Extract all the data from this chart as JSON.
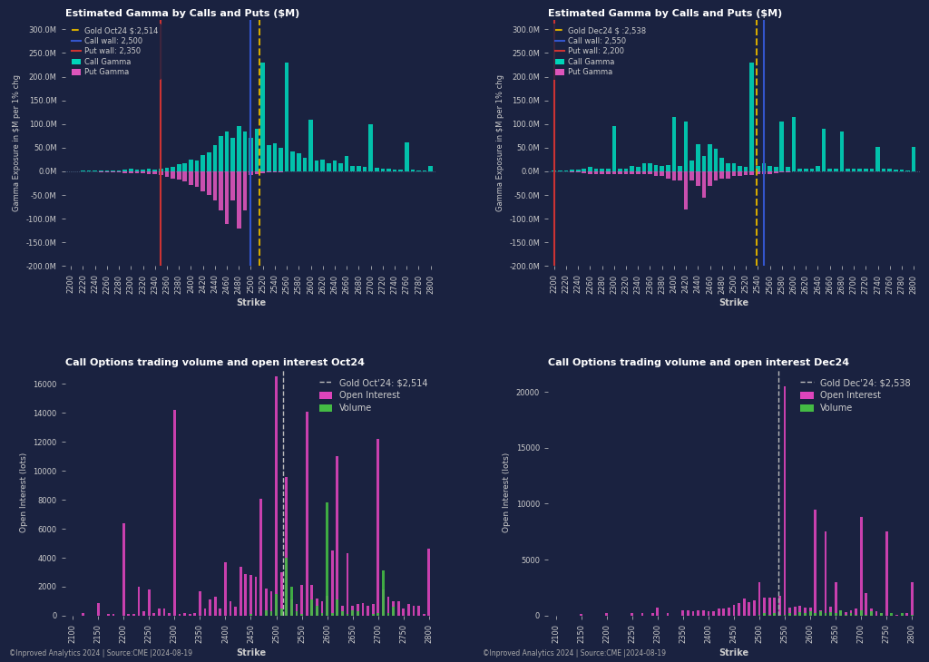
{
  "bg_color": "#1a2240",
  "text_color": "#cccccc",
  "title_color": "#ffffff",
  "top_left": {
    "title": "Estimated Gamma by Calls and Puts ($M)",
    "gold_price": 2514,
    "gold_label": "Gold Oct24 $:2,514",
    "call_wall": 2500,
    "call_wall_label": "Call wall: 2,500",
    "put_wall": 2350,
    "put_wall_label": "Put wall: 2,350",
    "ylabel": "Gamma Exposure in $M per 1% chg",
    "xlabel": "Strike",
    "ylim_min": -200,
    "ylim_max": 320,
    "strikes": [
      2200,
      2210,
      2220,
      2230,
      2240,
      2250,
      2260,
      2270,
      2280,
      2290,
      2300,
      2310,
      2320,
      2330,
      2340,
      2350,
      2360,
      2370,
      2380,
      2390,
      2400,
      2410,
      2420,
      2430,
      2440,
      2450,
      2460,
      2470,
      2480,
      2490,
      2500,
      2510,
      2520,
      2530,
      2540,
      2550,
      2560,
      2570,
      2580,
      2590,
      2600,
      2610,
      2620,
      2630,
      2640,
      2650,
      2660,
      2670,
      2680,
      2690,
      2700,
      2710,
      2720,
      2730,
      2740,
      2750,
      2760,
      2770,
      2780,
      2790,
      2800
    ],
    "call_gamma": [
      0,
      0,
      1,
      1,
      1,
      2,
      2,
      2,
      2,
      3,
      5,
      4,
      3,
      5,
      4,
      6,
      7,
      10,
      15,
      18,
      25,
      22,
      35,
      40,
      55,
      75,
      85,
      70,
      95,
      85,
      70,
      90,
      230,
      55,
      60,
      50,
      230,
      42,
      38,
      28,
      110,
      22,
      25,
      18,
      22,
      18,
      32,
      12,
      12,
      10,
      100,
      7,
      6,
      5,
      4,
      3,
      62,
      3,
      2,
      2,
      12
    ],
    "put_gamma": [
      0,
      0,
      -1,
      -1,
      -1,
      -2,
      -2,
      -2,
      -2,
      -3,
      -4,
      -4,
      -4,
      -5,
      -5,
      -8,
      -12,
      -15,
      -18,
      -22,
      -28,
      -32,
      -42,
      -50,
      -62,
      -82,
      -112,
      -62,
      -120,
      -82,
      -8,
      -5,
      -3,
      -2,
      -2,
      -2,
      -1,
      -1,
      -1,
      -1,
      -1,
      -1,
      -1,
      -1,
      -1,
      -1,
      -1,
      -1,
      -1,
      -1,
      -1,
      -1,
      -1,
      -1,
      -1,
      -1,
      -1,
      -1,
      -1,
      -1,
      -1
    ]
  },
  "top_right": {
    "title": "Estimated Gamma by Calls and Puts ($M)",
    "gold_price": 2538,
    "gold_label": "Gold Dec24 $ :2,538",
    "call_wall": 2550,
    "call_wall_label": "Call wall: 2,550",
    "put_wall": 2200,
    "put_wall_label": "Put wall: 2,200",
    "ylabel": "Gamma Exposure in $M per 1% chg",
    "xlabel": "Strike",
    "ylim_min": -200,
    "ylim_max": 320,
    "strikes": [
      2200,
      2210,
      2220,
      2230,
      2240,
      2250,
      2260,
      2270,
      2280,
      2290,
      2300,
      2310,
      2320,
      2330,
      2340,
      2350,
      2360,
      2370,
      2380,
      2390,
      2400,
      2410,
      2420,
      2430,
      2440,
      2450,
      2460,
      2470,
      2480,
      2490,
      2500,
      2510,
      2520,
      2530,
      2540,
      2550,
      2560,
      2570,
      2580,
      2590,
      2600,
      2610,
      2620,
      2630,
      2640,
      2650,
      2660,
      2670,
      2680,
      2690,
      2700,
      2710,
      2720,
      2730,
      2740,
      2750,
      2760,
      2770,
      2780,
      2790,
      2800
    ],
    "call_gamma": [
      1,
      1,
      2,
      3,
      4,
      6,
      10,
      6,
      6,
      6,
      95,
      6,
      6,
      12,
      10,
      18,
      18,
      14,
      12,
      14,
      115,
      12,
      105,
      22,
      58,
      32,
      58,
      48,
      28,
      18,
      18,
      12,
      10,
      230,
      12,
      18,
      12,
      10,
      105,
      10,
      115,
      6,
      6,
      6,
      12,
      90,
      6,
      6,
      85,
      6,
      6,
      6,
      6,
      6,
      52,
      6,
      6,
      3,
      3,
      2,
      52
    ],
    "put_gamma": [
      -1,
      -1,
      -1,
      -2,
      -2,
      -3,
      -5,
      -5,
      -5,
      -5,
      -5,
      -5,
      -5,
      -5,
      -5,
      -5,
      -5,
      -10,
      -10,
      -15,
      -20,
      -20,
      -80,
      -20,
      -30,
      -55,
      -30,
      -20,
      -15,
      -15,
      -10,
      -10,
      -8,
      -8,
      -5,
      -5,
      -5,
      -3,
      -2,
      -2,
      -1,
      -1,
      -1,
      -1,
      -1,
      -1,
      -1,
      -1,
      -1,
      -1,
      -1,
      -1,
      -1,
      -1,
      -1,
      -1,
      -1,
      -1,
      -1,
      -1,
      -1
    ]
  },
  "bot_left": {
    "title": "Call Options trading volume and open interest Oct24",
    "gold_price": 2514,
    "gold_label": "Gold Oct'24: $2,514",
    "ylabel": "Open Interest (lots)",
    "xlabel": "Strike",
    "ylim_max": 17000,
    "strikes": [
      2100,
      2110,
      2120,
      2130,
      2140,
      2150,
      2160,
      2170,
      2180,
      2190,
      2200,
      2210,
      2220,
      2230,
      2240,
      2250,
      2260,
      2270,
      2280,
      2290,
      2300,
      2310,
      2320,
      2330,
      2340,
      2350,
      2360,
      2370,
      2380,
      2390,
      2400,
      2410,
      2420,
      2430,
      2440,
      2450,
      2460,
      2470,
      2480,
      2490,
      2500,
      2510,
      2520,
      2530,
      2540,
      2550,
      2560,
      2570,
      2580,
      2590,
      2600,
      2610,
      2620,
      2630,
      2640,
      2650,
      2660,
      2670,
      2680,
      2690,
      2700,
      2710,
      2720,
      2730,
      2740,
      2750,
      2760,
      2770,
      2780,
      2790,
      2800
    ],
    "open_interest": [
      0,
      0,
      200,
      0,
      0,
      900,
      0,
      100,
      100,
      0,
      6400,
      100,
      100,
      2000,
      300,
      1800,
      200,
      500,
      500,
      200,
      14200,
      100,
      200,
      100,
      200,
      1700,
      500,
      1100,
      1300,
      500,
      3700,
      1000,
      600,
      3400,
      2900,
      2800,
      2700,
      8100,
      1900,
      1700,
      16500,
      3000,
      9600,
      1100,
      800,
      2100,
      14100,
      2100,
      1200,
      1000,
      1400,
      4500,
      11000,
      700,
      4300,
      700,
      800,
      900,
      700,
      800,
      12200,
      1800,
      1300,
      1000,
      1000,
      500,
      800,
      700,
      700,
      100,
      4600
    ],
    "volume": [
      0,
      0,
      0,
      0,
      0,
      0,
      0,
      0,
      0,
      0,
      0,
      0,
      0,
      0,
      0,
      0,
      0,
      0,
      0,
      0,
      0,
      0,
      0,
      0,
      0,
      0,
      0,
      0,
      0,
      0,
      0,
      0,
      0,
      0,
      0,
      100,
      0,
      0,
      400,
      300,
      1500,
      500,
      4000,
      2000,
      300,
      100,
      0,
      1100,
      700,
      200,
      7800,
      200,
      1100,
      300,
      100,
      400,
      300,
      0,
      0,
      100,
      200,
      3100,
      200,
      600,
      0,
      0,
      0,
      0,
      0,
      0,
      0
    ]
  },
  "bot_right": {
    "title": "Call Options trading volume and open interest Dec24",
    "gold_price": 2538,
    "gold_label": "Gold Dec'24: $2,538",
    "ylabel": "Open Interest (lots)",
    "xlabel": "Strike",
    "ylim_max": 22000,
    "strikes": [
      2100,
      2110,
      2120,
      2130,
      2140,
      2150,
      2160,
      2170,
      2180,
      2190,
      2200,
      2210,
      2220,
      2230,
      2240,
      2250,
      2260,
      2270,
      2280,
      2290,
      2300,
      2310,
      2320,
      2330,
      2340,
      2350,
      2360,
      2370,
      2380,
      2390,
      2400,
      2410,
      2420,
      2430,
      2440,
      2450,
      2460,
      2470,
      2480,
      2490,
      2500,
      2510,
      2520,
      2530,
      2540,
      2550,
      2560,
      2570,
      2580,
      2590,
      2600,
      2610,
      2620,
      2630,
      2640,
      2650,
      2660,
      2670,
      2680,
      2690,
      2700,
      2710,
      2720,
      2730,
      2740,
      2750,
      2760,
      2770,
      2780,
      2790,
      2800
    ],
    "open_interest": [
      0,
      0,
      0,
      0,
      0,
      150,
      0,
      0,
      0,
      0,
      200,
      0,
      0,
      0,
      0,
      200,
      0,
      200,
      0,
      200,
      700,
      0,
      200,
      0,
      0,
      500,
      500,
      400,
      500,
      500,
      400,
      400,
      600,
      600,
      700,
      1000,
      1100,
      1500,
      1200,
      1400,
      3000,
      1600,
      1600,
      1600,
      1800,
      20500,
      700,
      800,
      900,
      700,
      700,
      9500,
      500,
      7500,
      800,
      3000,
      500,
      300,
      500,
      600,
      8800,
      2000,
      600,
      400,
      200,
      7500,
      100,
      100,
      100,
      200,
      3000
    ],
    "volume": [
      0,
      0,
      0,
      0,
      0,
      0,
      0,
      0,
      0,
      0,
      0,
      0,
      0,
      0,
      0,
      0,
      0,
      0,
      0,
      0,
      0,
      0,
      0,
      0,
      0,
      0,
      0,
      0,
      0,
      0,
      0,
      0,
      0,
      0,
      0,
      0,
      0,
      0,
      0,
      0,
      100,
      200,
      100,
      200,
      100,
      100,
      200,
      100,
      300,
      200,
      400,
      200,
      400,
      200,
      300,
      200,
      500,
      100,
      200,
      100,
      500,
      100,
      400,
      0,
      200,
      0,
      200,
      0,
      200,
      0,
      100
    ]
  },
  "footer": "©Inproved Analytics 2024 | Source:CME |2024-08-19",
  "colors": {
    "call_gamma": "#00d4b8",
    "put_gamma": "#dd55bb",
    "gold_line": "#d4aa00",
    "call_wall": "#3355cc",
    "put_wall": "#cc3333",
    "open_interest": "#dd44bb",
    "volume": "#44bb44"
  }
}
